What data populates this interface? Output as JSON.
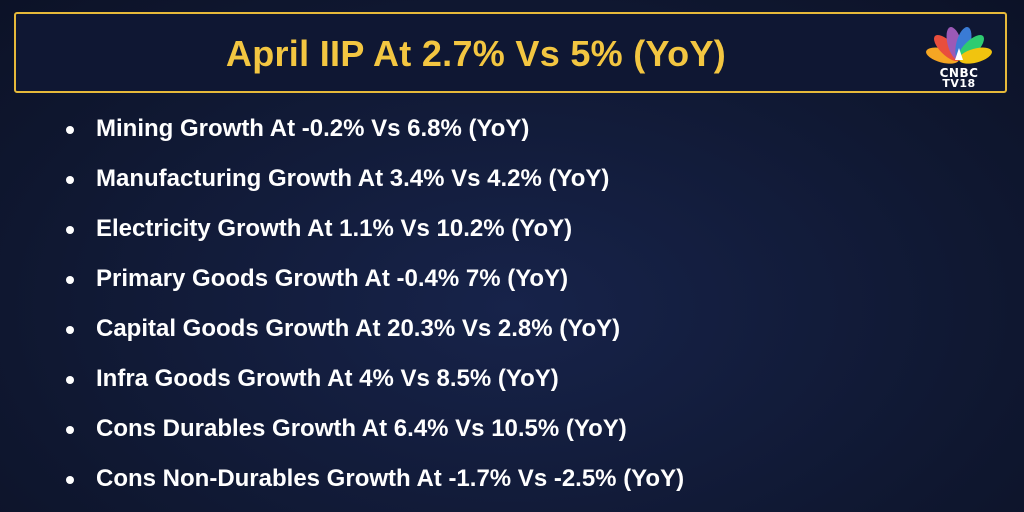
{
  "header": {
    "title": "April IIP At 2.7% Vs 5% (YoY)"
  },
  "logo": {
    "line1": "CNBC",
    "line2": "TV18",
    "icon": "cnbc-peacock-icon",
    "colors": [
      "#f5a623",
      "#e94e3d",
      "#9b59b6",
      "#3a7bd5",
      "#2ecc71",
      "#f1c40f"
    ]
  },
  "items": [
    "Mining Growth At -0.2% Vs 6.8% (YoY)",
    "Manufacturing Growth At 3.4% Vs 4.2% (YoY)",
    "Electricity Growth At 1.1% Vs 10.2% (YoY)",
    "Primary Goods Growth At -0.4% 7% (YoY)",
    "Capital Goods Growth At 20.3% Vs 2.8% (YoY)",
    "Infra Goods Growth At 4% Vs 8.5% (YoY)",
    "Cons Durables Growth At 6.4% Vs 10.5% (YoY)",
    "Cons Non-Durables Growth At -1.7% Vs -2.5% (YoY)"
  ],
  "colors": {
    "background": "#111a33",
    "accent": "#f3c641",
    "text": "#ffffff"
  }
}
